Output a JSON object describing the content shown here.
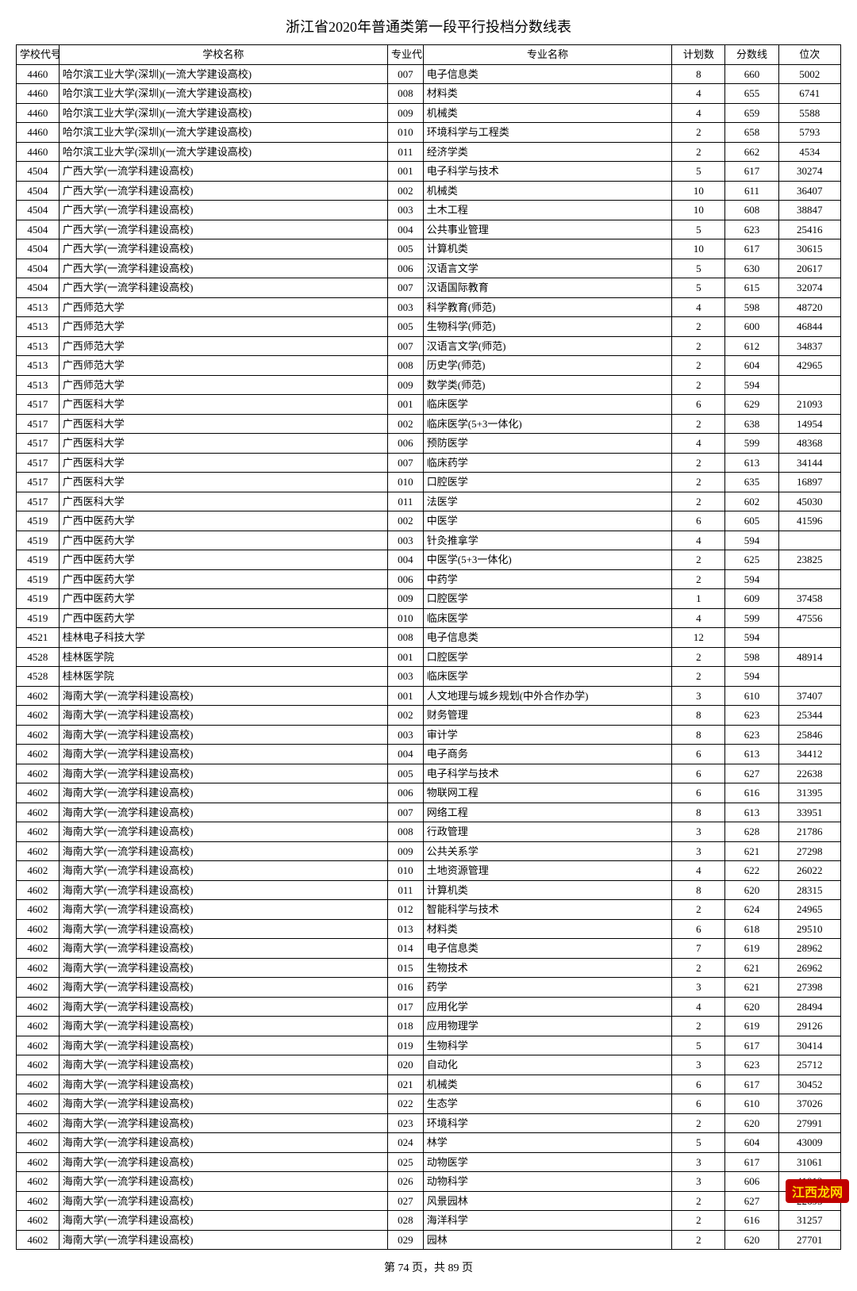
{
  "title": "浙江省2020年普通类第一段平行投档分数线表",
  "columns": [
    "学校代号",
    "学校名称",
    "专业代号",
    "专业名称",
    "计划数",
    "分数线",
    "位次"
  ],
  "footer": "第 74 页，共 89 页",
  "watermark": "江西龙网",
  "rows": [
    [
      "4460",
      "哈尔滨工业大学(深圳)(一流大学建设高校)",
      "007",
      "电子信息类",
      "8",
      "660",
      "5002"
    ],
    [
      "4460",
      "哈尔滨工业大学(深圳)(一流大学建设高校)",
      "008",
      "材料类",
      "4",
      "655",
      "6741"
    ],
    [
      "4460",
      "哈尔滨工业大学(深圳)(一流大学建设高校)",
      "009",
      "机械类",
      "4",
      "659",
      "5588"
    ],
    [
      "4460",
      "哈尔滨工业大学(深圳)(一流大学建设高校)",
      "010",
      "环境科学与工程类",
      "2",
      "658",
      "5793"
    ],
    [
      "4460",
      "哈尔滨工业大学(深圳)(一流大学建设高校)",
      "011",
      "经济学类",
      "2",
      "662",
      "4534"
    ],
    [
      "4504",
      "广西大学(一流学科建设高校)",
      "001",
      "电子科学与技术",
      "5",
      "617",
      "30274"
    ],
    [
      "4504",
      "广西大学(一流学科建设高校)",
      "002",
      "机械类",
      "10",
      "611",
      "36407"
    ],
    [
      "4504",
      "广西大学(一流学科建设高校)",
      "003",
      "土木工程",
      "10",
      "608",
      "38847"
    ],
    [
      "4504",
      "广西大学(一流学科建设高校)",
      "004",
      "公共事业管理",
      "5",
      "623",
      "25416"
    ],
    [
      "4504",
      "广西大学(一流学科建设高校)",
      "005",
      "计算机类",
      "10",
      "617",
      "30615"
    ],
    [
      "4504",
      "广西大学(一流学科建设高校)",
      "006",
      "汉语言文学",
      "5",
      "630",
      "20617"
    ],
    [
      "4504",
      "广西大学(一流学科建设高校)",
      "007",
      "汉语国际教育",
      "5",
      "615",
      "32074"
    ],
    [
      "4513",
      "广西师范大学",
      "003",
      "科学教育(师范)",
      "4",
      "598",
      "48720"
    ],
    [
      "4513",
      "广西师范大学",
      "005",
      "生物科学(师范)",
      "2",
      "600",
      "46844"
    ],
    [
      "4513",
      "广西师范大学",
      "007",
      "汉语言文学(师范)",
      "2",
      "612",
      "34837"
    ],
    [
      "4513",
      "广西师范大学",
      "008",
      "历史学(师范)",
      "2",
      "604",
      "42965"
    ],
    [
      "4513",
      "广西师范大学",
      "009",
      "数学类(师范)",
      "2",
      "594",
      ""
    ],
    [
      "4517",
      "广西医科大学",
      "001",
      "临床医学",
      "6",
      "629",
      "21093"
    ],
    [
      "4517",
      "广西医科大学",
      "002",
      "临床医学(5+3一体化)",
      "2",
      "638",
      "14954"
    ],
    [
      "4517",
      "广西医科大学",
      "006",
      "预防医学",
      "4",
      "599",
      "48368"
    ],
    [
      "4517",
      "广西医科大学",
      "007",
      "临床药学",
      "2",
      "613",
      "34144"
    ],
    [
      "4517",
      "广西医科大学",
      "010",
      "口腔医学",
      "2",
      "635",
      "16897"
    ],
    [
      "4517",
      "广西医科大学",
      "011",
      "法医学",
      "2",
      "602",
      "45030"
    ],
    [
      "4519",
      "广西中医药大学",
      "002",
      "中医学",
      "6",
      "605",
      "41596"
    ],
    [
      "4519",
      "广西中医药大学",
      "003",
      "针灸推拿学",
      "4",
      "594",
      ""
    ],
    [
      "4519",
      "广西中医药大学",
      "004",
      "中医学(5+3一体化)",
      "2",
      "625",
      "23825"
    ],
    [
      "4519",
      "广西中医药大学",
      "006",
      "中药学",
      "2",
      "594",
      ""
    ],
    [
      "4519",
      "广西中医药大学",
      "009",
      "口腔医学",
      "1",
      "609",
      "37458"
    ],
    [
      "4519",
      "广西中医药大学",
      "010",
      "临床医学",
      "4",
      "599",
      "47556"
    ],
    [
      "4521",
      "桂林电子科技大学",
      "008",
      "电子信息类",
      "12",
      "594",
      ""
    ],
    [
      "4528",
      "桂林医学院",
      "001",
      "口腔医学",
      "2",
      "598",
      "48914"
    ],
    [
      "4528",
      "桂林医学院",
      "003",
      "临床医学",
      "2",
      "594",
      ""
    ],
    [
      "4602",
      "海南大学(一流学科建设高校)",
      "001",
      "人文地理与城乡规划(中外合作办学)",
      "3",
      "610",
      "37407"
    ],
    [
      "4602",
      "海南大学(一流学科建设高校)",
      "002",
      "财务管理",
      "8",
      "623",
      "25344"
    ],
    [
      "4602",
      "海南大学(一流学科建设高校)",
      "003",
      "审计学",
      "8",
      "623",
      "25846"
    ],
    [
      "4602",
      "海南大学(一流学科建设高校)",
      "004",
      "电子商务",
      "6",
      "613",
      "34412"
    ],
    [
      "4602",
      "海南大学(一流学科建设高校)",
      "005",
      "电子科学与技术",
      "6",
      "627",
      "22638"
    ],
    [
      "4602",
      "海南大学(一流学科建设高校)",
      "006",
      "物联网工程",
      "6",
      "616",
      "31395"
    ],
    [
      "4602",
      "海南大学(一流学科建设高校)",
      "007",
      "网络工程",
      "8",
      "613",
      "33951"
    ],
    [
      "4602",
      "海南大学(一流学科建设高校)",
      "008",
      "行政管理",
      "3",
      "628",
      "21786"
    ],
    [
      "4602",
      "海南大学(一流学科建设高校)",
      "009",
      "公共关系学",
      "3",
      "621",
      "27298"
    ],
    [
      "4602",
      "海南大学(一流学科建设高校)",
      "010",
      "土地资源管理",
      "4",
      "622",
      "26022"
    ],
    [
      "4602",
      "海南大学(一流学科建设高校)",
      "011",
      "计算机类",
      "8",
      "620",
      "28315"
    ],
    [
      "4602",
      "海南大学(一流学科建设高校)",
      "012",
      "智能科学与技术",
      "2",
      "624",
      "24965"
    ],
    [
      "4602",
      "海南大学(一流学科建设高校)",
      "013",
      "材料类",
      "6",
      "618",
      "29510"
    ],
    [
      "4602",
      "海南大学(一流学科建设高校)",
      "014",
      "电子信息类",
      "7",
      "619",
      "28962"
    ],
    [
      "4602",
      "海南大学(一流学科建设高校)",
      "015",
      "生物技术",
      "2",
      "621",
      "26962"
    ],
    [
      "4602",
      "海南大学(一流学科建设高校)",
      "016",
      "药学",
      "3",
      "621",
      "27398"
    ],
    [
      "4602",
      "海南大学(一流学科建设高校)",
      "017",
      "应用化学",
      "4",
      "620",
      "28494"
    ],
    [
      "4602",
      "海南大学(一流学科建设高校)",
      "018",
      "应用物理学",
      "2",
      "619",
      "29126"
    ],
    [
      "4602",
      "海南大学(一流学科建设高校)",
      "019",
      "生物科学",
      "5",
      "617",
      "30414"
    ],
    [
      "4602",
      "海南大学(一流学科建设高校)",
      "020",
      "自动化",
      "3",
      "623",
      "25712"
    ],
    [
      "4602",
      "海南大学(一流学科建设高校)",
      "021",
      "机械类",
      "6",
      "617",
      "30452"
    ],
    [
      "4602",
      "海南大学(一流学科建设高校)",
      "022",
      "生态学",
      "6",
      "610",
      "37026"
    ],
    [
      "4602",
      "海南大学(一流学科建设高校)",
      "023",
      "环境科学",
      "2",
      "620",
      "27991"
    ],
    [
      "4602",
      "海南大学(一流学科建设高校)",
      "024",
      "林学",
      "5",
      "604",
      "43009"
    ],
    [
      "4602",
      "海南大学(一流学科建设高校)",
      "025",
      "动物医学",
      "3",
      "617",
      "31061"
    ],
    [
      "4602",
      "海南大学(一流学科建设高校)",
      "026",
      "动物科学",
      "3",
      "606",
      "41012"
    ],
    [
      "4602",
      "海南大学(一流学科建设高校)",
      "027",
      "风景园林",
      "2",
      "627",
      "22695"
    ],
    [
      "4602",
      "海南大学(一流学科建设高校)",
      "028",
      "海洋科学",
      "2",
      "616",
      "31257"
    ],
    [
      "4602",
      "海南大学(一流学科建设高校)",
      "029",
      "园林",
      "2",
      "620",
      "27701"
    ]
  ]
}
